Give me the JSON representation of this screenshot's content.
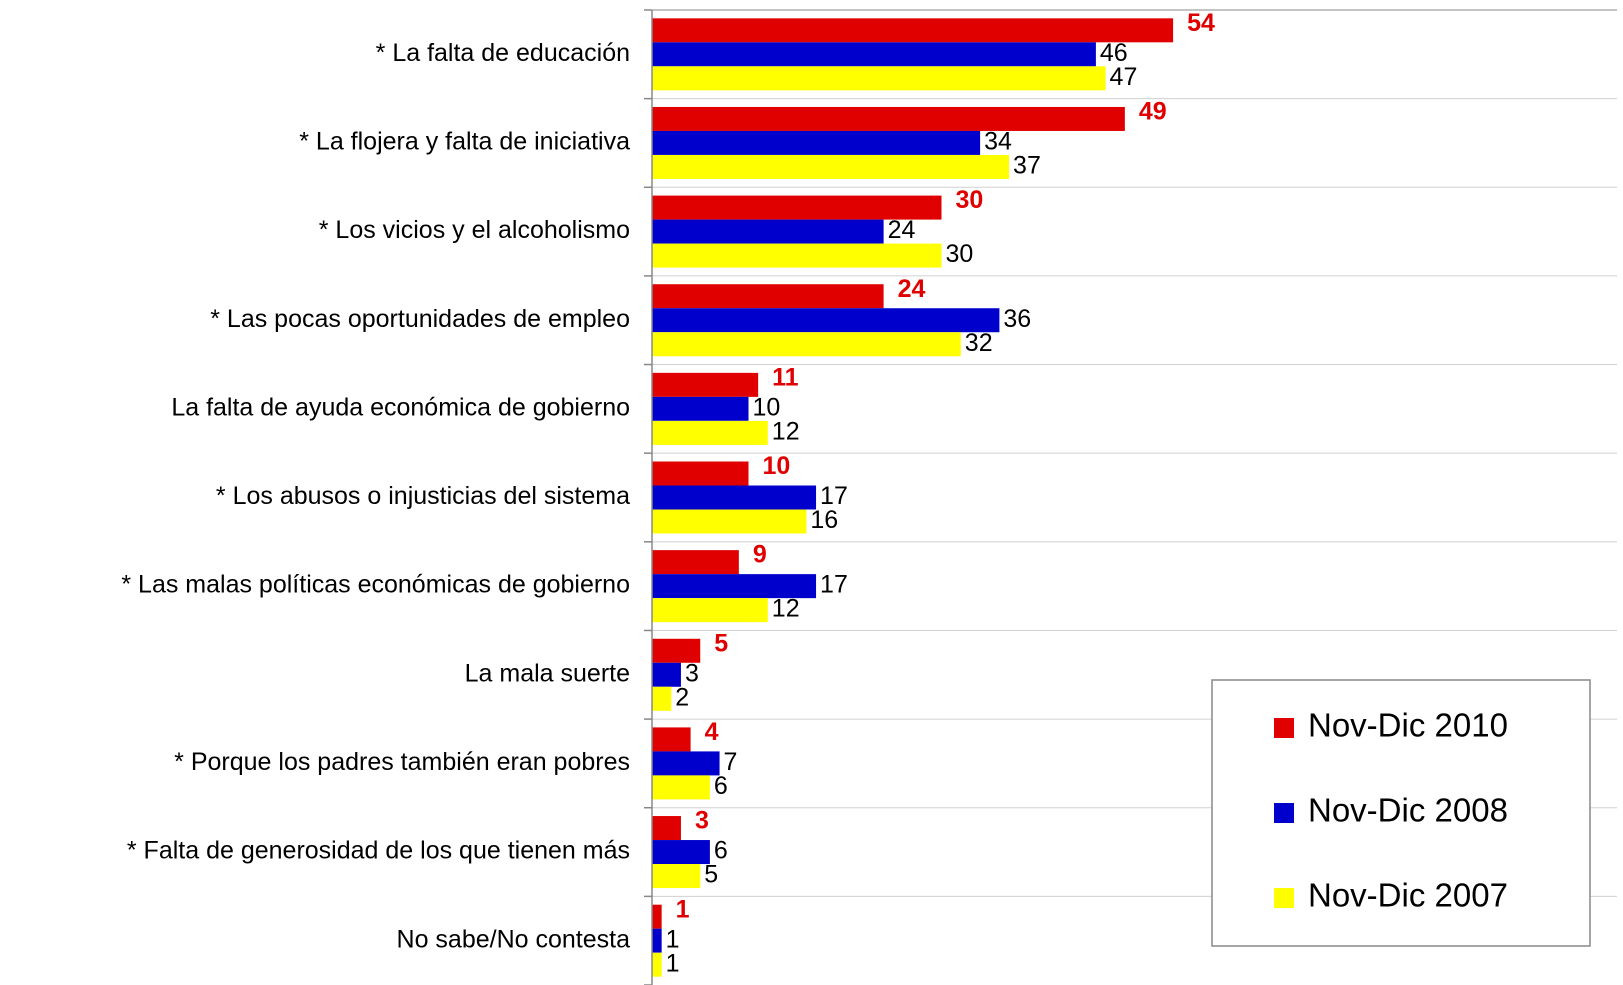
{
  "chart_data": {
    "type": "bar",
    "orientation": "horizontal",
    "categories": [
      "* La falta de educación",
      "* La flojera y falta de iniciativa",
      "* Los vicios y el alcoholismo",
      "* Las pocas oportunidades de empleo",
      "La falta de ayuda económica de gobierno",
      "* Los abusos o injusticias del sistema",
      "* Las malas políticas económicas de gobierno",
      "La mala suerte",
      "* Porque los padres también eran pobres",
      "* Falta de generosidad de los que tienen más",
      "No sabe/No contesta"
    ],
    "series": [
      {
        "name": "Nov-Dic 2010",
        "color": "#e00000",
        "values": [
          54,
          49,
          30,
          24,
          11,
          10,
          9,
          5,
          4,
          3,
          1
        ]
      },
      {
        "name": "Nov-Dic 2008",
        "color": "#0000cc",
        "values": [
          46,
          34,
          24,
          36,
          10,
          17,
          17,
          3,
          7,
          6,
          1
        ]
      },
      {
        "name": "Nov-Dic 2007",
        "color": "#ffff00",
        "values": [
          47,
          37,
          30,
          32,
          12,
          16,
          12,
          2,
          6,
          5,
          1
        ]
      }
    ],
    "xlim": [
      0,
      100
    ],
    "legend": "lower right"
  }
}
